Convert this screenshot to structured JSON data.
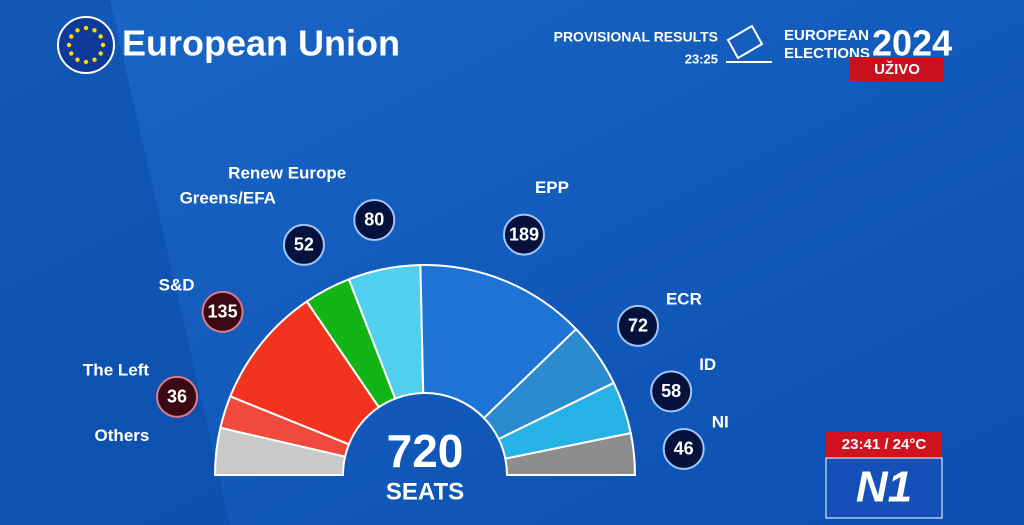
{
  "header": {
    "title": "European Union",
    "provisional": "PROVISIONAL RESULTS",
    "time": "23:25",
    "elections_line1": "EUROPEAN",
    "elections_line2": "ELECTIONS",
    "year": "2024",
    "live": "UŽIVO"
  },
  "chart_data": {
    "type": "hemicycle",
    "categories": [
      "Others",
      "The Left",
      "S&D",
      "Greens/EFA",
      "Renew Europe",
      "EPP",
      "ECR",
      "ID",
      "NI"
    ],
    "values": [
      52,
      36,
      135,
      52,
      80,
      189,
      72,
      58,
      46
    ],
    "colors": [
      "#c9c9c9",
      "#ef4a3c",
      "#f2341f",
      "#13b516",
      "#50cfee",
      "#1d74d6",
      "#2a8ccf",
      "#27b2e6",
      "#8d8d8d"
    ],
    "total": 720,
    "total_label": "SEATS"
  },
  "overlay": {
    "clock": "23:41 / 24°C",
    "logo": "N1"
  }
}
